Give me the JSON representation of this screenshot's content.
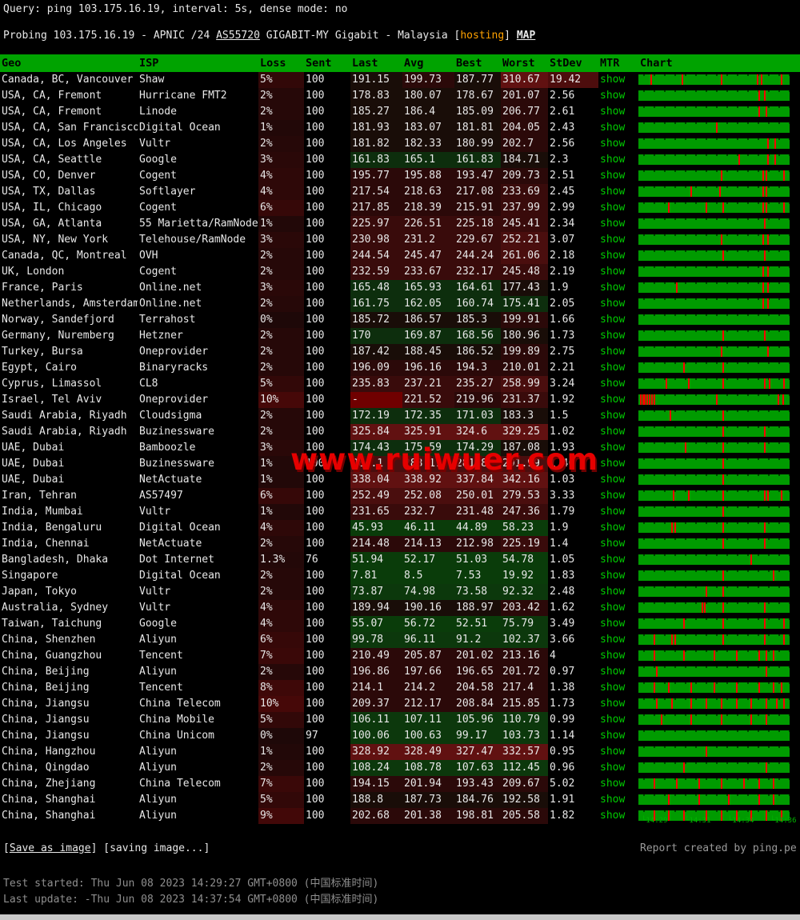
{
  "query_line": "Query: ping 103.175.16.19, interval: 5s, dense mode: no",
  "probing": {
    "prefix": "Probing 103.175.16.19 - APNIC /24 ",
    "asn": "AS55720",
    "middle": " GIGABIT-MY Gigabit - Malaysia [",
    "tag": "hosting",
    "suffix": "] ",
    "map_label": "MAP"
  },
  "watermark": "www.ruiwuer.com",
  "colors": {
    "header_green": "#00a300",
    "bar_green": "#009b00",
    "show_green": "#00cc00",
    "spike_red": "#ff0000",
    "watermark_red": "#e60000",
    "hosting_orange": "#ffa200"
  },
  "table": {
    "headers": [
      "Geo",
      "ISP",
      "Loss",
      "Sent",
      "Last",
      "Avg",
      "Best",
      "Worst",
      "StDev",
      "MTR",
      "Chart"
    ],
    "mtr_label": "show",
    "rows": [
      {
        "geo": "Canada, BC, Vancouver",
        "isp": "Shaw",
        "loss": "5%",
        "sent": "100",
        "last": "191.15",
        "avg": "199.73",
        "best": "187.77",
        "worst": "310.67",
        "stdev": "19.42",
        "spikes": [
          0.08,
          0.29,
          0.55,
          0.79,
          0.82,
          0.95
        ]
      },
      {
        "geo": "USA, CA, Fremont",
        "isp": "Hurricane FMT2",
        "loss": "2%",
        "sent": "100",
        "last": "178.83",
        "avg": "180.07",
        "best": "178.67",
        "worst": "201.07",
        "stdev": "2.56",
        "spikes": [
          0.8,
          0.84
        ]
      },
      {
        "geo": "USA, CA, Fremont",
        "isp": "Linode",
        "loss": "2%",
        "sent": "100",
        "last": "185.27",
        "avg": "186.4",
        "best": "185.09",
        "worst": "206.77",
        "stdev": "2.61",
        "spikes": [
          0.8,
          0.85
        ]
      },
      {
        "geo": "USA, CA, San Francisco",
        "isp": "Digital Ocean",
        "loss": "1%",
        "sent": "100",
        "last": "181.93",
        "avg": "183.07",
        "best": "181.81",
        "worst": "204.05",
        "stdev": "2.43",
        "spikes": [
          0.52
        ]
      },
      {
        "geo": "USA, CA, Los Angeles",
        "isp": "Vultr",
        "loss": "2%",
        "sent": "100",
        "last": "181.82",
        "avg": "182.33",
        "best": "180.99",
        "worst": "202.7",
        "stdev": "2.56",
        "spikes": [
          0.86,
          0.91
        ]
      },
      {
        "geo": "USA, CA, Seattle",
        "isp": "Google",
        "loss": "3%",
        "sent": "100",
        "last": "161.83",
        "avg": "165.1",
        "best": "161.83",
        "worst": "184.71",
        "stdev": "2.3",
        "spikes": [
          0.67,
          0.86,
          0.91
        ]
      },
      {
        "geo": "USA, CO, Denver",
        "isp": "Cogent",
        "loss": "4%",
        "sent": "100",
        "last": "195.77",
        "avg": "195.88",
        "best": "193.47",
        "worst": "209.73",
        "stdev": "2.51",
        "spikes": [
          0.55,
          0.83,
          0.85,
          0.97
        ]
      },
      {
        "geo": "USA, TX, Dallas",
        "isp": "Softlayer",
        "loss": "4%",
        "sent": "100",
        "last": "217.54",
        "avg": "218.63",
        "best": "217.08",
        "worst": "233.69",
        "stdev": "2.45",
        "spikes": [
          0.35,
          0.54,
          0.83,
          0.85
        ]
      },
      {
        "geo": "USA, IL, Chicago",
        "isp": "Cogent",
        "loss": "6%",
        "sent": "100",
        "last": "217.85",
        "avg": "218.39",
        "best": "215.91",
        "worst": "237.99",
        "stdev": "2.99",
        "spikes": [
          0.2,
          0.45,
          0.56,
          0.83,
          0.85,
          0.97
        ]
      },
      {
        "geo": "USA, GA, Atlanta",
        "isp": "55 Marietta/RamNode",
        "loss": "1%",
        "sent": "100",
        "last": "225.97",
        "avg": "226.51",
        "best": "225.18",
        "worst": "245.41",
        "stdev": "2.34",
        "spikes": [
          0.84
        ]
      },
      {
        "geo": "USA, NY, New York",
        "isp": "Telehouse/RamNode",
        "loss": "3%",
        "sent": "100",
        "last": "230.98",
        "avg": "231.2",
        "best": "229.67",
        "worst": "252.21",
        "stdev": "3.07",
        "spikes": [
          0.55,
          0.83,
          0.86
        ]
      },
      {
        "geo": "Canada, QC, Montreal",
        "isp": "OVH",
        "loss": "2%",
        "sent": "100",
        "last": "244.54",
        "avg": "245.47",
        "best": "244.24",
        "worst": "261.06",
        "stdev": "2.18",
        "spikes": [
          0.56,
          0.84
        ]
      },
      {
        "geo": "UK, London",
        "isp": "Cogent",
        "loss": "2%",
        "sent": "100",
        "last": "232.59",
        "avg": "233.67",
        "best": "232.17",
        "worst": "245.48",
        "stdev": "2.19",
        "spikes": [
          0.83,
          0.86
        ]
      },
      {
        "geo": "France, Paris",
        "isp": "Online.net",
        "loss": "3%",
        "sent": "100",
        "last": "165.48",
        "avg": "165.93",
        "best": "164.61",
        "worst": "177.43",
        "stdev": "1.9",
        "spikes": [
          0.25,
          0.83,
          0.86
        ]
      },
      {
        "geo": "Netherlands, Amsterdam",
        "isp": "Online.net",
        "loss": "2%",
        "sent": "100",
        "last": "161.75",
        "avg": "162.05",
        "best": "160.74",
        "worst": "175.41",
        "stdev": "2.05",
        "spikes": [
          0.83,
          0.86
        ]
      },
      {
        "geo": "Norway, Sandefjord",
        "isp": "Terrahost",
        "loss": "0%",
        "sent": "100",
        "last": "185.72",
        "avg": "186.57",
        "best": "185.3",
        "worst": "199.91",
        "stdev": "1.66",
        "spikes": []
      },
      {
        "geo": "Germany, Nuremberg",
        "isp": "Hetzner",
        "loss": "2%",
        "sent": "100",
        "last": "170",
        "avg": "169.87",
        "best": "168.56",
        "worst": "180.96",
        "stdev": "1.73",
        "spikes": [
          0.56,
          0.84
        ]
      },
      {
        "geo": "Turkey, Bursa",
        "isp": "Oneprovider",
        "loss": "2%",
        "sent": "100",
        "last": "187.42",
        "avg": "188.45",
        "best": "186.52",
        "worst": "199.89",
        "stdev": "2.75",
        "spikes": [
          0.55,
          0.86
        ]
      },
      {
        "geo": "Egypt, Cairo",
        "isp": "Binaryracks",
        "loss": "2%",
        "sent": "100",
        "last": "196.09",
        "avg": "196.16",
        "best": "194.3",
        "worst": "210.01",
        "stdev": "2.21",
        "spikes": [
          0.3,
          0.56
        ]
      },
      {
        "geo": "Cyprus, Limassol",
        "isp": "CL8",
        "loss": "5%",
        "sent": "100",
        "last": "235.83",
        "avg": "237.21",
        "best": "235.27",
        "worst": "258.99",
        "stdev": "3.24",
        "spikes": [
          0.18,
          0.33,
          0.56,
          0.84,
          0.87,
          0.97
        ]
      },
      {
        "geo": "Israel, Tel Aviv",
        "isp": "Oneprovider",
        "loss": "10%",
        "sent": "100",
        "last": "-",
        "avg": "221.52",
        "best": "219.96",
        "worst": "231.37",
        "stdev": "1.92",
        "spikes": [
          0.01,
          0.025,
          0.04,
          0.055,
          0.07,
          0.085,
          0.1,
          0.52,
          0.93,
          0.96
        ]
      },
      {
        "geo": "Saudi Arabia, Riyadh",
        "isp": "Cloudsigma",
        "loss": "2%",
        "sent": "100",
        "last": "172.19",
        "avg": "172.35",
        "best": "171.03",
        "worst": "183.3",
        "stdev": "1.5",
        "spikes": [
          0.21,
          0.56
        ]
      },
      {
        "geo": "Saudi Arabia, Riyadh",
        "isp": "Buzinessware",
        "loss": "2%",
        "sent": "100",
        "last": "325.84",
        "avg": "325.91",
        "best": "324.6",
        "worst": "329.25",
        "stdev": "1.02",
        "spikes": [
          0.56,
          0.84
        ]
      },
      {
        "geo": "UAE, Dubai",
        "isp": "Bamboozle",
        "loss": "3%",
        "sent": "100",
        "last": "174.43",
        "avg": "175.59",
        "best": "174.29",
        "worst": "187.08",
        "stdev": "1.93",
        "spikes": [
          0.31,
          0.56,
          0.84
        ]
      },
      {
        "geo": "UAE, Dubai",
        "isp": "Buzinessware",
        "loss": "1%",
        "sent": "100",
        "last": "284.1",
        "avg": "283.17",
        "best": "281.8",
        "worst": "291.99",
        "stdev": "1.46",
        "spikes": [
          0.56
        ]
      },
      {
        "geo": "UAE, Dubai",
        "isp": "NetActuate",
        "loss": "1%",
        "sent": "100",
        "last": "338.04",
        "avg": "338.92",
        "best": "337.84",
        "worst": "342.16",
        "stdev": "1.03",
        "spikes": [
          0.56
        ]
      },
      {
        "geo": "Iran, Tehran",
        "isp": "AS57497",
        "loss": "6%",
        "sent": "100",
        "last": "252.49",
        "avg": "252.08",
        "best": "250.01",
        "worst": "279.53",
        "stdev": "3.33",
        "spikes": [
          0.23,
          0.33,
          0.56,
          0.84,
          0.86,
          0.95
        ]
      },
      {
        "geo": "India, Mumbai",
        "isp": "Vultr",
        "loss": "1%",
        "sent": "100",
        "last": "231.65",
        "avg": "232.7",
        "best": "231.48",
        "worst": "247.36",
        "stdev": "1.79",
        "spikes": [
          0.56
        ]
      },
      {
        "geo": "India, Bengaluru",
        "isp": "Digital Ocean",
        "loss": "4%",
        "sent": "100",
        "last": "45.93",
        "avg": "46.11",
        "best": "44.89",
        "worst": "58.23",
        "stdev": "1.9",
        "spikes": [
          0.22,
          0.24,
          0.56,
          0.84
        ]
      },
      {
        "geo": "India, Chennai",
        "isp": "NetActuate",
        "loss": "2%",
        "sent": "100",
        "last": "214.48",
        "avg": "214.13",
        "best": "212.98",
        "worst": "225.19",
        "stdev": "1.4",
        "spikes": [
          0.56,
          0.84
        ]
      },
      {
        "geo": "Bangladesh, Dhaka",
        "isp": "Dot Internet",
        "loss": "1.3%",
        "sent": "76",
        "last": "51.94",
        "avg": "52.17",
        "best": "51.03",
        "worst": "54.78",
        "stdev": "1.05",
        "spikes": [
          0.75
        ]
      },
      {
        "geo": "Singapore",
        "isp": "Digital Ocean",
        "loss": "2%",
        "sent": "100",
        "last": "7.81",
        "avg": "8.5",
        "best": "7.53",
        "worst": "19.92",
        "stdev": "1.83",
        "spikes": [
          0.56,
          0.9
        ]
      },
      {
        "geo": "Japan, Tokyo",
        "isp": "Vultr",
        "loss": "2%",
        "sent": "100",
        "last": "73.87",
        "avg": "74.98",
        "best": "73.58",
        "worst": "92.32",
        "stdev": "2.48",
        "spikes": [
          0.45,
          0.56
        ]
      },
      {
        "geo": "Australia, Sydney",
        "isp": "Vultr",
        "loss": "4%",
        "sent": "100",
        "last": "189.94",
        "avg": "190.16",
        "best": "188.97",
        "worst": "203.42",
        "stdev": "1.62",
        "spikes": [
          0.42,
          0.44,
          0.56,
          0.84
        ]
      },
      {
        "geo": "Taiwan, Taichung",
        "isp": "Google",
        "loss": "4%",
        "sent": "100",
        "last": "55.07",
        "avg": "56.72",
        "best": "52.51",
        "worst": "75.79",
        "stdev": "3.49",
        "spikes": [
          0.3,
          0.56,
          0.84,
          0.97
        ]
      },
      {
        "geo": "China, Shenzhen",
        "isp": "Aliyun",
        "loss": "6%",
        "sent": "100",
        "last": "99.78",
        "avg": "96.11",
        "best": "91.2",
        "worst": "102.37",
        "stdev": "3.66",
        "spikes": [
          0.1,
          0.22,
          0.24,
          0.56,
          0.84,
          0.97
        ]
      },
      {
        "geo": "China, Guangzhou",
        "isp": "Tencent",
        "loss": "7%",
        "sent": "100",
        "last": "210.49",
        "avg": "205.87",
        "best": "201.02",
        "worst": "213.16",
        "stdev": "4",
        "spikes": [
          0.1,
          0.3,
          0.5,
          0.65,
          0.8,
          0.85,
          0.9
        ]
      },
      {
        "geo": "China, Beijing",
        "isp": "Aliyun",
        "loss": "2%",
        "sent": "100",
        "last": "196.86",
        "avg": "197.66",
        "best": "196.65",
        "worst": "201.72",
        "stdev": "0.97",
        "spikes": [
          0.12,
          0.85
        ]
      },
      {
        "geo": "China, Beijing",
        "isp": "Tencent",
        "loss": "8%",
        "sent": "100",
        "last": "214.1",
        "avg": "214.2",
        "best": "204.58",
        "worst": "217.4",
        "stdev": "1.38",
        "spikes": [
          0.1,
          0.2,
          0.35,
          0.5,
          0.65,
          0.8,
          0.9,
          0.95
        ]
      },
      {
        "geo": "China, Jiangsu",
        "isp": "China Telecom",
        "loss": "10%",
        "sent": "100",
        "last": "209.37",
        "avg": "212.17",
        "best": "208.84",
        "worst": "215.85",
        "stdev": "1.73",
        "spikes": [
          0.12,
          0.22,
          0.35,
          0.45,
          0.55,
          0.65,
          0.75,
          0.85,
          0.92,
          0.97
        ]
      },
      {
        "geo": "China, Jiangsu",
        "isp": "China Mobile",
        "loss": "5%",
        "sent": "100",
        "last": "106.11",
        "avg": "107.11",
        "best": "105.96",
        "worst": "110.79",
        "stdev": "0.99",
        "spikes": [
          0.15,
          0.35,
          0.55,
          0.75,
          0.85
        ]
      },
      {
        "geo": "China, Jiangsu",
        "isp": "China Unicom",
        "loss": "0%",
        "sent": "97",
        "last": "100.06",
        "avg": "100.63",
        "best": "99.17",
        "worst": "103.73",
        "stdev": "1.14",
        "spikes": []
      },
      {
        "geo": "China, Hangzhou",
        "isp": "Aliyun",
        "loss": "1%",
        "sent": "100",
        "last": "328.92",
        "avg": "328.49",
        "best": "327.47",
        "worst": "332.57",
        "stdev": "0.95",
        "spikes": [
          0.45
        ]
      },
      {
        "geo": "China, Qingdao",
        "isp": "Aliyun",
        "loss": "2%",
        "sent": "100",
        "last": "108.24",
        "avg": "108.78",
        "best": "107.63",
        "worst": "112.45",
        "stdev": "0.96",
        "spikes": [
          0.3,
          0.85
        ]
      },
      {
        "geo": "China, Zhejiang",
        "isp": "China Telecom",
        "loss": "7%",
        "sent": "100",
        "last": "194.15",
        "avg": "201.94",
        "best": "193.43",
        "worst": "209.67",
        "stdev": "5.02",
        "spikes": [
          0.1,
          0.25,
          0.4,
          0.55,
          0.7,
          0.8,
          0.9
        ]
      },
      {
        "geo": "China, Shanghai",
        "isp": "Aliyun",
        "loss": "5%",
        "sent": "100",
        "last": "188.8",
        "avg": "187.73",
        "best": "184.76",
        "worst": "192.58",
        "stdev": "1.91",
        "spikes": [
          0.2,
          0.4,
          0.6,
          0.8,
          0.9
        ]
      },
      {
        "geo": "China, Shanghai",
        "isp": "Aliyun",
        "loss": "9%",
        "sent": "100",
        "last": "202.68",
        "avg": "201.38",
        "best": "198.81",
        "worst": "205.58",
        "stdev": "1.82",
        "spikes": [
          0.1,
          0.2,
          0.3,
          0.45,
          0.55,
          0.65,
          0.75,
          0.85,
          0.95
        ]
      }
    ]
  },
  "chart_axis": [
    "14:29",
    "14:31",
    "14:34",
    "14:36"
  ],
  "footer": {
    "save_link": "Save as image",
    "saving_label": "saving image...",
    "report": "Report created by ping.pe",
    "test_started": "Test started: Thu Jun 08 2023 14:29:27 GMT+0800 (中国标准时间)",
    "last_update": "Last update: -Thu Jun 08 2023 14:37:54 GMT+0800 (中国标准时间)"
  }
}
